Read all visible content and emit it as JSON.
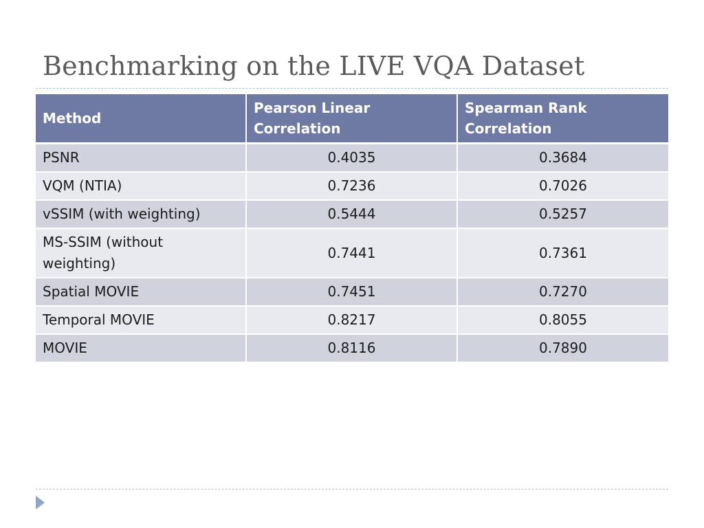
{
  "slide": {
    "title": "Benchmarking on the LIVE VQA Dataset"
  },
  "table": {
    "headers": [
      "Method",
      "Pearson Linear Correlation",
      "Spearman Rank Correlation"
    ],
    "rows": [
      {
        "method": "PSNR",
        "pearson": "0.4035",
        "spearman": "0.3684"
      },
      {
        "method": "VQM (NTIA)",
        "pearson": "0.7236",
        "spearman": "0.7026"
      },
      {
        "method": "vSSIM (with weighting)",
        "pearson": "0.5444",
        "spearman": "0.5257"
      },
      {
        "method": "MS-SSIM (without weighting)",
        "pearson": "0.7441",
        "spearman": "0.7361"
      },
      {
        "method": "Spatial MOVIE",
        "pearson": "0.7451",
        "spearman": "0.7270"
      },
      {
        "method": "Temporal MOVIE",
        "pearson": "0.8217",
        "spearman": "0.8055"
      },
      {
        "method": "MOVIE",
        "pearson": "0.8116",
        "spearman": "0.7890"
      }
    ]
  },
  "colors": {
    "header_bg": "#6e7aa3",
    "row_dark": "#d0d3de",
    "row_light": "#e9eaef",
    "rule": "#a9bccd",
    "bullet": "#8ea6c8"
  },
  "icons": {
    "footer_bullet": "triangle-right-icon"
  }
}
